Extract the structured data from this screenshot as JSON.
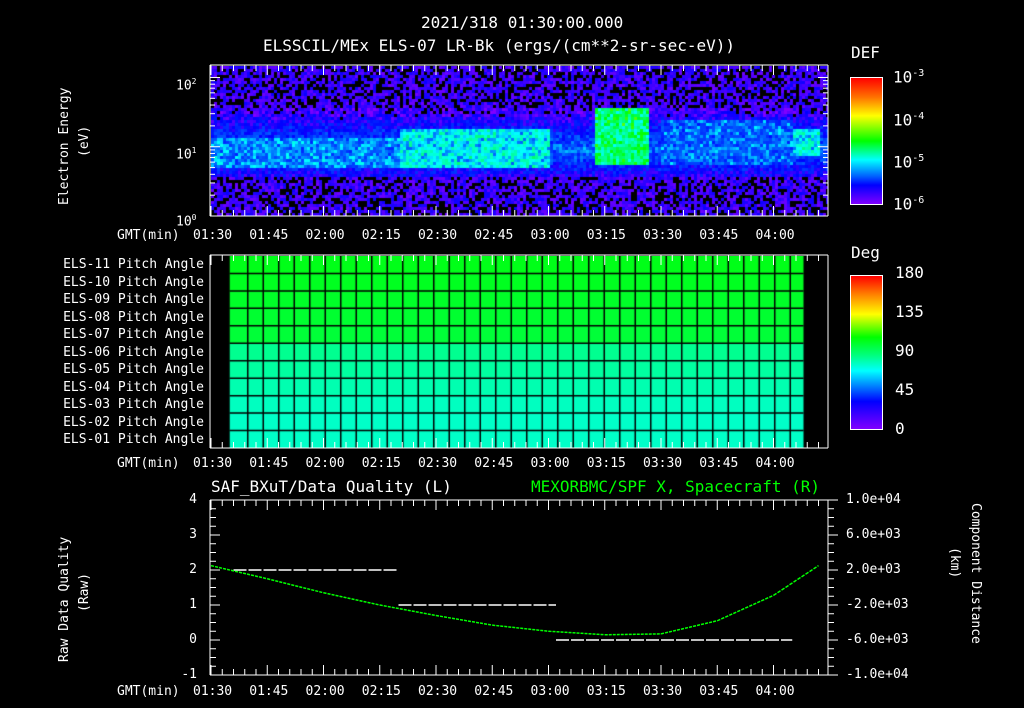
{
  "header": {
    "timestamp": "2021/318 01:30:00.000",
    "subtitle": "ELSSCIL/MEx ELS-07 LR-Bk  (ergs/(cm**2-sr-sec-eV))"
  },
  "time_axis": {
    "label": "GMT(min)",
    "ticks": [
      "01:30",
      "01:45",
      "02:00",
      "02:15",
      "02:30",
      "02:45",
      "03:00",
      "03:15",
      "03:30",
      "03:45",
      "04:00"
    ]
  },
  "panel1": {
    "ylabel": "Electron Energy",
    "yunit": "(eV)",
    "yticks": [
      {
        "base": "10",
        "exp": "2"
      },
      {
        "base": "10",
        "exp": "1"
      },
      {
        "base": "10",
        "exp": "0"
      }
    ],
    "colorbar": {
      "title": "DEF",
      "ticks": [
        {
          "base": "10",
          "exp": "-3"
        },
        {
          "base": "10",
          "exp": "-4"
        },
        {
          "base": "10",
          "exp": "-5"
        },
        {
          "base": "10",
          "exp": "-6"
        }
      ]
    }
  },
  "panel2": {
    "rows": [
      "ELS-11 Pitch Angle",
      "ELS-10 Pitch Angle",
      "ELS-09 Pitch Angle",
      "ELS-08 Pitch Angle",
      "ELS-07 Pitch Angle",
      "ELS-06 Pitch Angle",
      "ELS-05 Pitch Angle",
      "ELS-04 Pitch Angle",
      "ELS-03 Pitch Angle",
      "ELS-02 Pitch Angle",
      "ELS-01 Pitch Angle"
    ],
    "colorbar": {
      "title": "Deg",
      "ticks": [
        "180",
        "135",
        "90",
        "45",
        "0"
      ]
    }
  },
  "panel3": {
    "left_title": "SAF_BXuT/Data Quality (L)",
    "right_title": "MEXORBMC/SPF X, Spacecraft (R)",
    "ylabel_left": "Raw Data Quality",
    "yunit_left": "(Raw)",
    "yticks_left": [
      "4",
      "3",
      "2",
      "1",
      "0",
      "-1"
    ],
    "ylabel_right": "Component Distance",
    "yunit_right": "(km)",
    "yticks_right": [
      "1.0e+04",
      "6.0e+03",
      "2.0e+03",
      "-2.0e+03",
      "-6.0e+03",
      "-1.0e+04"
    ],
    "colors": {
      "left": "#ffffff",
      "right": "#00ff00"
    }
  },
  "chart_data": [
    {
      "type": "heatmap",
      "title": "ELSSCIL/MEx ELS-07 LR-Bk (ergs/(cm**2-sr-sec-eV))",
      "xlabel": "GMT(min)",
      "ylabel": "Electron Energy (eV)",
      "x_range": [
        "01:30",
        "04:12"
      ],
      "y_scale": "log",
      "ylim": [
        1,
        150
      ],
      "colorbar": {
        "label": "DEF",
        "scale": "log",
        "range": [
          1e-06,
          0.001
        ]
      },
      "features": [
        {
          "time": "01:30-02:20",
          "energy_eV": "5-15",
          "level": 1e-05
        },
        {
          "time": "02:20-03:00",
          "energy_eV": "5-20",
          "level": 2e-05
        },
        {
          "time": "03:12-03:26",
          "energy_eV": "6-60",
          "level": 5e-05
        },
        {
          "time": "03:30-04:05",
          "energy_eV": "6-25",
          "level": 8e-06
        },
        {
          "time": "04:05-04:12",
          "energy_eV": "8-20",
          "level": 2e-05
        }
      ]
    },
    {
      "type": "heatmap",
      "title": "Pitch Angle",
      "xlabel": "GMT(min)",
      "categories": [
        "ELS-11",
        "ELS-10",
        "ELS-09",
        "ELS-08",
        "ELS-07",
        "ELS-06",
        "ELS-05",
        "ELS-04",
        "ELS-03",
        "ELS-02",
        "ELS-01"
      ],
      "values_deg": [
        100,
        98,
        96,
        94,
        92,
        86,
        82,
        78,
        74,
        72,
        72
      ],
      "x_range": [
        "01:35",
        "04:08"
      ],
      "colorbar": {
        "label": "Deg",
        "range": [
          0,
          180
        ]
      }
    },
    {
      "type": "line",
      "title": "SAF_BXuT/Data Quality (L) ; MEXORBMC/SPF X, Spacecraft (R)",
      "xlabel": "GMT(min)",
      "ylabel": "Raw Data Quality (Raw)",
      "ylabel_right": "Component Distance (km)",
      "ylim": [
        -1,
        4
      ],
      "ylim_right": [
        -10000,
        10000
      ],
      "series": [
        {
          "name": "Data Quality",
          "axis": "left",
          "color": "#ffffff",
          "x": [
            "01:36",
            "02:20",
            "02:20",
            "03:02",
            "03:02",
            "04:05"
          ],
          "y": [
            2,
            2,
            1,
            1,
            0,
            0
          ]
        },
        {
          "name": "SPF X",
          "axis": "right",
          "color": "#00ff00",
          "x": [
            "01:30",
            "01:45",
            "02:00",
            "02:15",
            "02:30",
            "02:45",
            "03:00",
            "03:15",
            "03:30",
            "03:45",
            "04:00",
            "04:12"
          ],
          "y": [
            2500,
            1000,
            -600,
            -2000,
            -3200,
            -4300,
            -5000,
            -5400,
            -5300,
            -3800,
            -900,
            2500
          ]
        }
      ]
    }
  ]
}
